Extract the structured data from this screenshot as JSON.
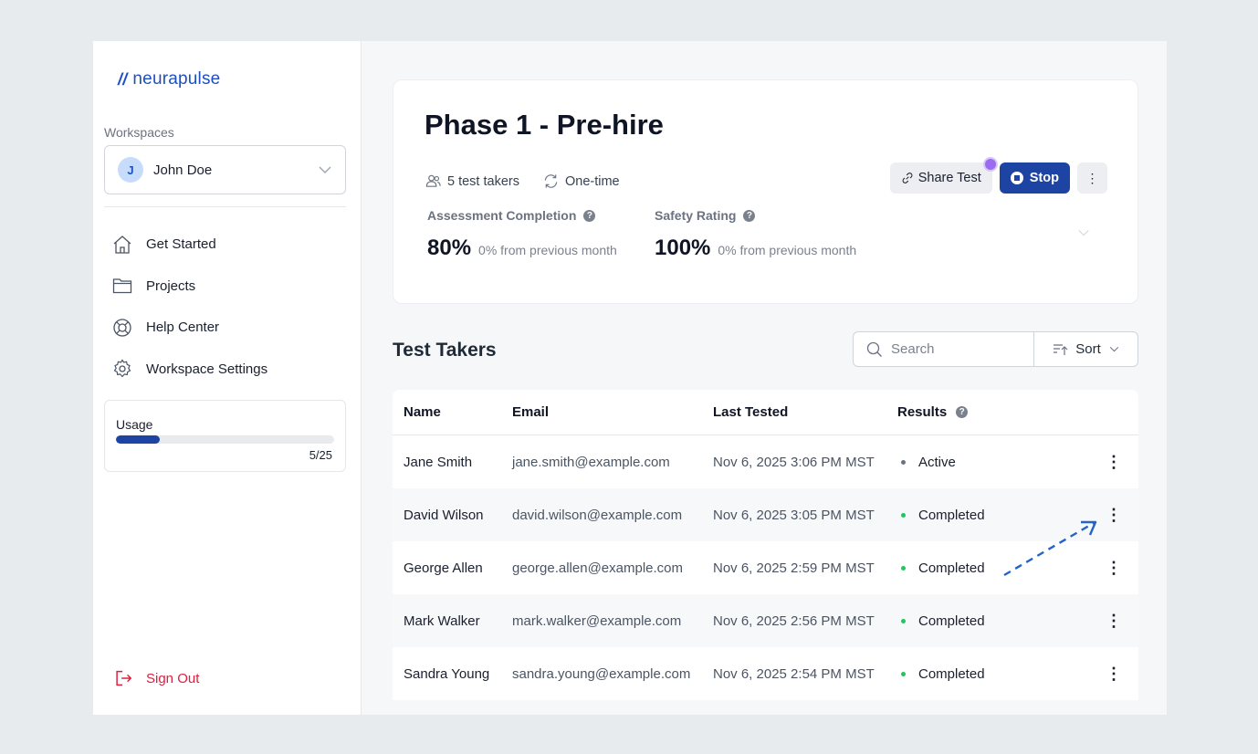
{
  "brand": {
    "logo_mark": "//",
    "name": "neurapulse",
    "accent": "#1e44a3"
  },
  "sidebar": {
    "workspaces_label": "Workspaces",
    "workspace": {
      "initial": "J",
      "name": "John Doe"
    },
    "nav": [
      {
        "label": "Get Started",
        "icon": "home-icon"
      },
      {
        "label": "Projects",
        "icon": "folder-icon"
      },
      {
        "label": "Help Center",
        "icon": "lifebuoy-icon"
      },
      {
        "label": "Workspace Settings",
        "icon": "gear-icon"
      }
    ],
    "usage": {
      "label": "Usage",
      "count": "5/25",
      "fraction": 0.2
    },
    "sign_out": "Sign Out"
  },
  "test": {
    "title": "Phase 1 - Pre-hire",
    "takers": "5 test takers",
    "frequency": "One-time",
    "share_label": "Share Test",
    "stop_label": "Stop",
    "more_label": "⋮",
    "stats": [
      {
        "label": "Assessment Completion",
        "value": "80%",
        "change": "0% from previous month"
      },
      {
        "label": "Safety Rating",
        "value": "100%",
        "change": "0% from previous month"
      }
    ]
  },
  "takers_section": {
    "title": "Test Takers",
    "search_placeholder": "Search",
    "sort_label": "Sort",
    "columns": [
      "Name",
      "Email",
      "Last Tested",
      "Results"
    ],
    "rows": [
      {
        "name": "Jane Smith",
        "email": "jane.smith@example.com",
        "last_tested": "Nov 6, 2025 3:06 PM MST",
        "result": "Active",
        "status_color": "#6b7280"
      },
      {
        "name": "David Wilson",
        "email": "david.wilson@example.com",
        "last_tested": "Nov 6, 2025 3:05 PM MST",
        "result": "Completed",
        "status_color": "#22c55e"
      },
      {
        "name": "George Allen",
        "email": "george.allen@example.com",
        "last_tested": "Nov 6, 2025 2:59 PM MST",
        "result": "Completed",
        "status_color": "#22c55e"
      },
      {
        "name": "Mark Walker",
        "email": "mark.walker@example.com",
        "last_tested": "Nov 6, 2025 2:56 PM MST",
        "result": "Completed",
        "status_color": "#22c55e"
      },
      {
        "name": "Sandra Young",
        "email": "sandra.young@example.com",
        "last_tested": "Nov 6, 2025 2:54 PM MST",
        "result": "Completed",
        "status_color": "#22c55e"
      }
    ],
    "row_menu": "⋮"
  }
}
